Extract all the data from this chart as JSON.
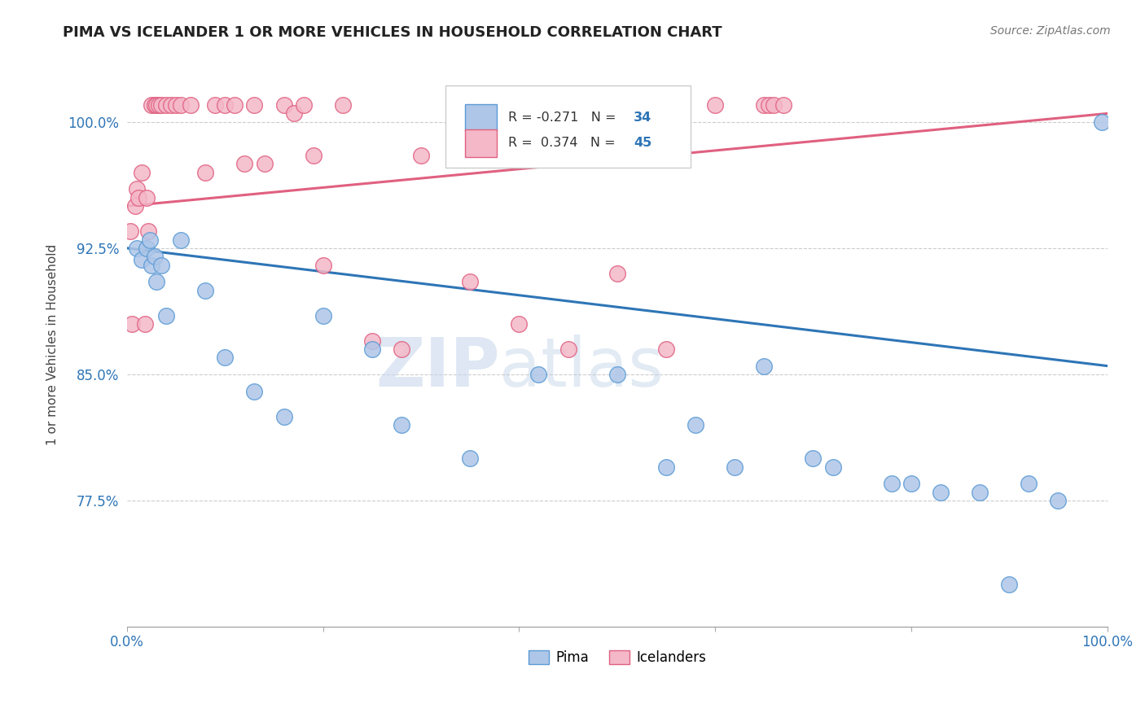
{
  "title": "PIMA VS ICELANDER 1 OR MORE VEHICLES IN HOUSEHOLD CORRELATION CHART",
  "source_text": "Source: ZipAtlas.com",
  "ylabel": "1 or more Vehicles in Household",
  "xmin": 0.0,
  "xmax": 100.0,
  "ymin": 70.0,
  "ymax": 103.5,
  "yticks": [
    77.5,
    85.0,
    92.5,
    100.0
  ],
  "xticks": [
    0.0,
    20.0,
    40.0,
    60.0,
    80.0,
    100.0
  ],
  "xtick_labels": [
    "0.0%",
    "",
    "",
    "",
    "",
    "100.0%"
  ],
  "pima_color": "#aec6e8",
  "pima_edge_color": "#5b9bd5",
  "icelander_color": "#f4b8c8",
  "icelander_edge_color": "#e06080",
  "pima_R": -0.271,
  "pima_N": 34,
  "icelander_R": 0.374,
  "icelander_N": 45,
  "pima_line_color": "#2e75b6",
  "icelander_line_color": "#e06080",
  "legend_pima_label": "Pima",
  "legend_icelander_label": "Icelanders",
  "watermark_zip": "ZIP",
  "watermark_atlas": "atlas",
  "pima_x": [
    1.0,
    1.5,
    2.0,
    2.3,
    2.5,
    2.8,
    3.0,
    3.5,
    4.0,
    5.5,
    8.0,
    10.0,
    13.0,
    16.0,
    20.0,
    25.0,
    28.0,
    35.0,
    42.0,
    50.0,
    55.0,
    58.0,
    62.0,
    65.0,
    70.0,
    72.0,
    78.0,
    80.0,
    83.0,
    87.0,
    90.0,
    92.0,
    95.0,
    99.5
  ],
  "pima_y": [
    92.5,
    91.8,
    92.5,
    93.0,
    91.5,
    92.0,
    90.5,
    91.5,
    88.5,
    93.0,
    90.0,
    86.0,
    84.0,
    82.5,
    88.5,
    86.5,
    82.0,
    80.0,
    85.0,
    85.0,
    79.5,
    82.0,
    79.5,
    85.5,
    80.0,
    79.5,
    78.5,
    78.5,
    78.0,
    78.0,
    72.5,
    78.5,
    77.5,
    100.0
  ],
  "icelander_x": [
    0.3,
    0.5,
    0.8,
    1.0,
    1.2,
    1.5,
    1.8,
    2.0,
    2.2,
    2.5,
    2.8,
    3.0,
    3.2,
    3.5,
    4.0,
    4.5,
    5.0,
    5.5,
    6.5,
    8.0,
    9.0,
    10.0,
    11.0,
    12.0,
    13.0,
    14.0,
    16.0,
    17.0,
    18.0,
    19.0,
    20.0,
    22.0,
    25.0,
    28.0,
    30.0,
    35.0,
    40.0,
    45.0,
    50.0,
    55.0,
    60.0,
    65.0,
    65.5,
    66.0,
    67.0
  ],
  "icelander_y": [
    93.5,
    88.0,
    95.0,
    96.0,
    95.5,
    97.0,
    88.0,
    95.5,
    93.5,
    101.0,
    101.0,
    101.0,
    101.0,
    101.0,
    101.0,
    101.0,
    101.0,
    101.0,
    101.0,
    97.0,
    101.0,
    101.0,
    101.0,
    97.5,
    101.0,
    97.5,
    101.0,
    100.5,
    101.0,
    98.0,
    91.5,
    101.0,
    87.0,
    86.5,
    98.0,
    90.5,
    88.0,
    86.5,
    91.0,
    86.5,
    101.0,
    101.0,
    101.0,
    101.0,
    101.0
  ]
}
